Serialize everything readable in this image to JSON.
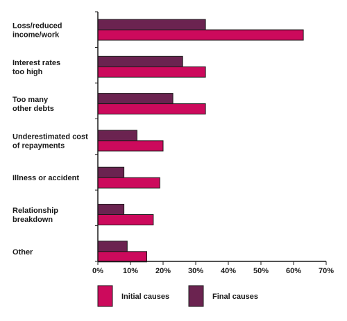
{
  "chart_data": {
    "type": "bar",
    "orientation": "horizontal",
    "categories": [
      [
        "Loss/reduced",
        "income/work"
      ],
      [
        "Interest rates",
        "too high"
      ],
      [
        "Too many",
        "other debts"
      ],
      [
        "Underestimated cost",
        "of repayments"
      ],
      [
        "Illness or accident"
      ],
      [
        "Relationship",
        "breakdown"
      ],
      [
        "Other"
      ]
    ],
    "series": [
      {
        "name": "Final causes",
        "color": "#6b2350",
        "values": [
          33,
          26,
          23,
          12,
          8,
          8,
          9
        ]
      },
      {
        "name": "Initial causes",
        "color": "#cc0a5c",
        "values": [
          63,
          33,
          33,
          20,
          19,
          17,
          15
        ]
      }
    ],
    "xlim": [
      0,
      70
    ],
    "xticks": [
      0,
      10,
      20,
      30,
      40,
      50,
      60,
      70
    ],
    "tick_format": "percent",
    "grid": false,
    "legend": {
      "placement": "bottom",
      "items": [
        {
          "label": "Initial causes",
          "color": "#cc0a5c"
        },
        {
          "label": "Final causes",
          "color": "#6b2350"
        }
      ]
    }
  }
}
